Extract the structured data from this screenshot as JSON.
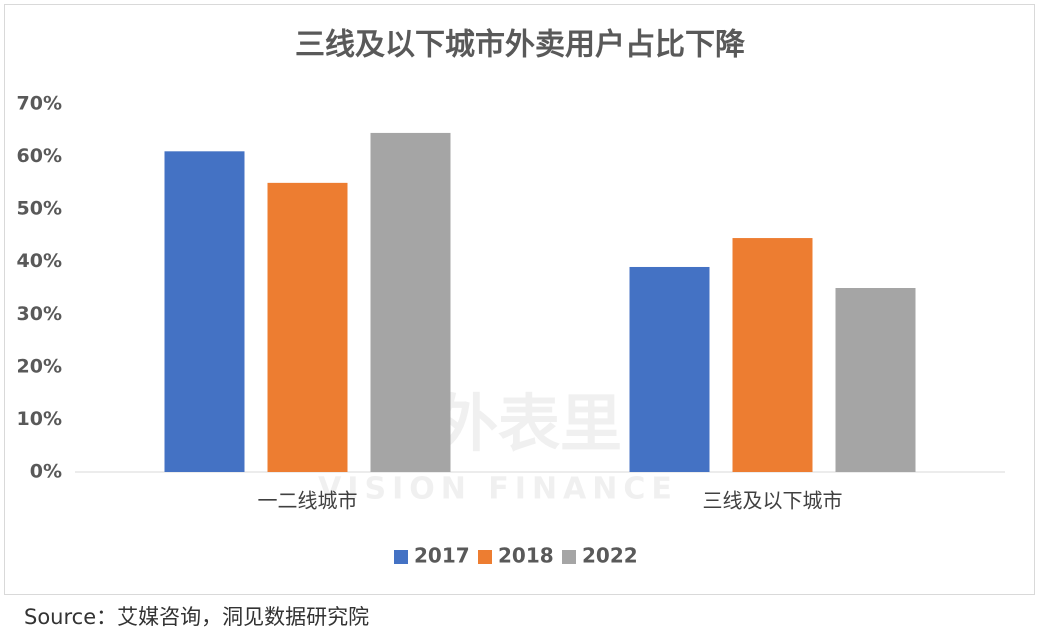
{
  "chart_data": {
    "type": "bar",
    "title": "三线及以下城市外卖用户占比下降",
    "categories": [
      "一二线城市",
      "三线及以下城市"
    ],
    "series": [
      {
        "name": "2017",
        "color": "#4472c4",
        "values": [
          61,
          39
        ]
      },
      {
        "name": "2018",
        "color": "#ed7d31",
        "values": [
          55,
          44.5
        ]
      },
      {
        "name": "2022",
        "color": "#a5a5a5",
        "values": [
          64.5,
          35
        ]
      }
    ],
    "ylim": [
      0,
      70
    ],
    "yticks": [
      {
        "value": 0,
        "label": "0%"
      },
      {
        "value": 10,
        "label": "10%"
      },
      {
        "value": 20,
        "label": "20%"
      },
      {
        "value": 30,
        "label": "30%"
      },
      {
        "value": 40,
        "label": "40%"
      },
      {
        "value": 50,
        "label": "50%"
      },
      {
        "value": 60,
        "label": "60%"
      },
      {
        "value": 70,
        "label": "70%"
      }
    ],
    "grid": false,
    "legend": "bottom",
    "watermark": [
      "表外表里",
      "VISION FINANCE"
    ]
  },
  "source": "Source：艾媒咨询，洞见数据研究院"
}
